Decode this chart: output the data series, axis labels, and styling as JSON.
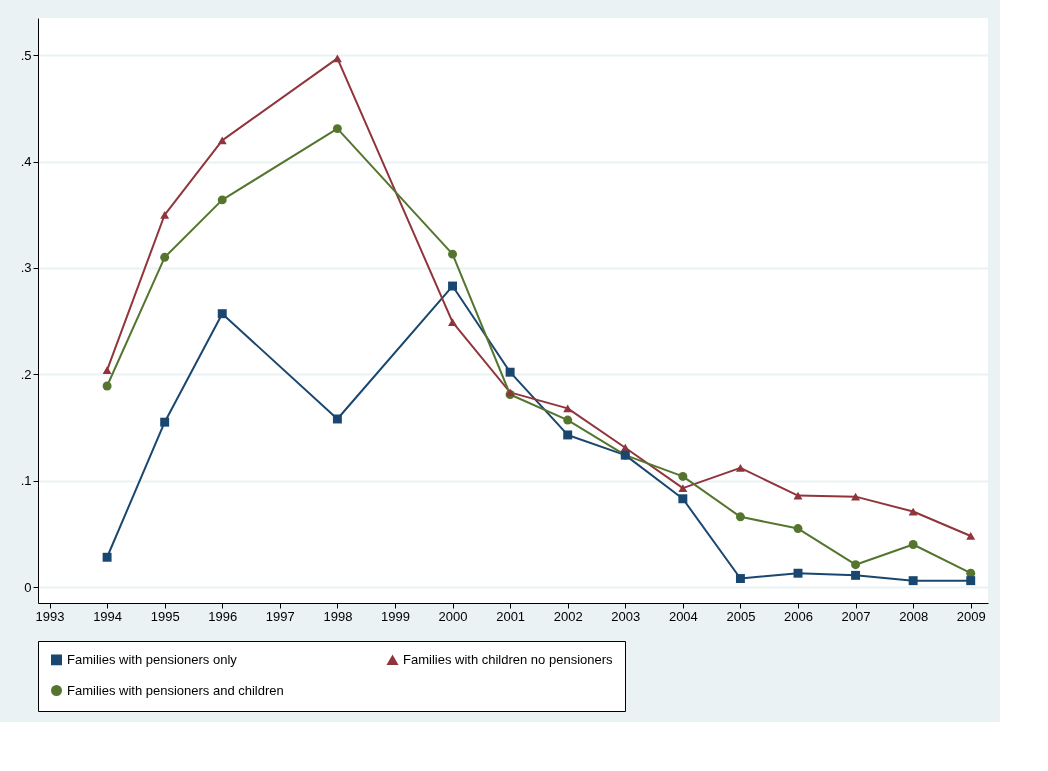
{
  "chart_data": {
    "type": "line",
    "x": [
      1994,
      1995,
      1996,
      1998,
      2000,
      2001,
      2002,
      2003,
      2004,
      2005,
      2006,
      2007,
      2008,
      2009
    ],
    "series": [
      {
        "name": "Families with pensioners only",
        "color": "#1a476f",
        "marker": "square",
        "values": [
          0.028,
          0.155,
          0.257,
          0.158,
          0.283,
          0.202,
          0.143,
          0.124,
          0.083,
          0.008,
          0.013,
          0.011,
          0.006,
          0.006
        ]
      },
      {
        "name": "Families with children no pensioners",
        "color": "#90353b",
        "marker": "triangle",
        "values": [
          0.204,
          0.35,
          0.42,
          0.497,
          0.249,
          0.183,
          0.168,
          0.131,
          0.093,
          0.112,
          0.086,
          0.085,
          0.071,
          0.048
        ]
      },
      {
        "name": "Families with pensioners and children",
        "color": "#55752f",
        "marker": "circle",
        "values": [
          0.189,
          0.31,
          0.364,
          0.431,
          0.313,
          0.181,
          0.157,
          0.124,
          0.104,
          0.066,
          0.055,
          0.021,
          0.04,
          0.013
        ]
      }
    ],
    "xlim": [
      1992.8,
      2009.3
    ],
    "xticks": [
      1993,
      1994,
      1995,
      1996,
      1997,
      1998,
      1999,
      2000,
      2001,
      2002,
      2003,
      2004,
      2005,
      2006,
      2007,
      2008,
      2009
    ],
    "ylim": [
      -0.015,
      0.535
    ],
    "yticks": [
      0,
      {
        "value": 0.1,
        "label": ".1"
      },
      {
        "value": 0.2,
        "label": ".2"
      },
      {
        "value": 0.3,
        "label": ".3"
      },
      {
        "value": 0.4,
        "label": ".4"
      },
      {
        "value": 0.5,
        "label": ".5"
      }
    ],
    "grid": "y",
    "legend": "bottom"
  }
}
